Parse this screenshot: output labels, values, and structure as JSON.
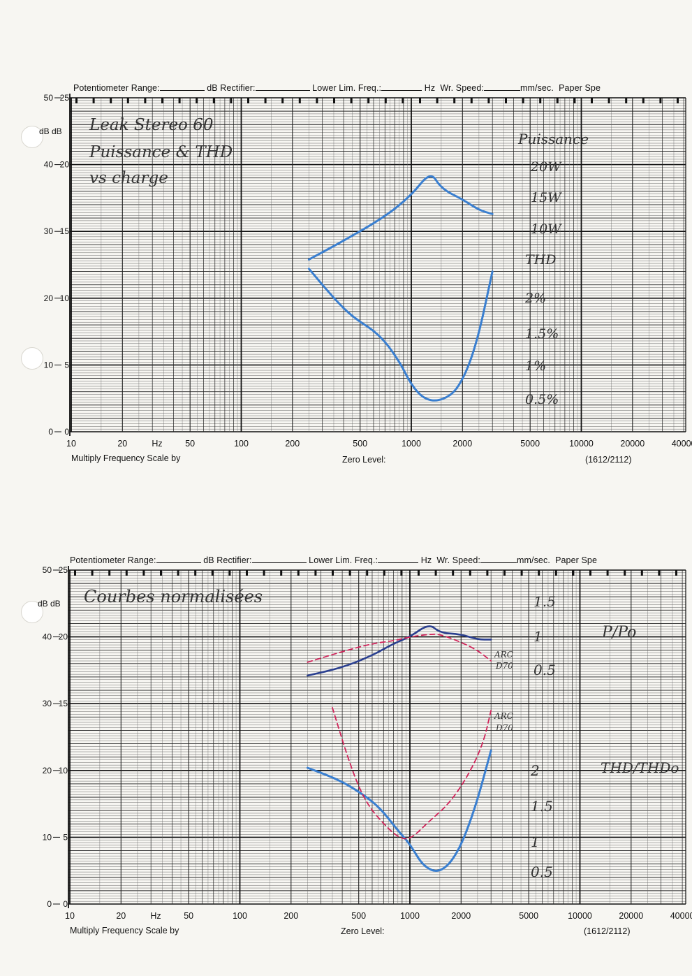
{
  "header": {
    "potentiometer": "Potentiometer Range:",
    "db": "dB",
    "rectifier": "Rectifier:",
    "lower_lim": "Lower Lim. Freq.:",
    "hz": "Hz",
    "wr_speed": "Wr.  Speed:",
    "mm_sec": "mm/sec.",
    "paper": "Paper Spe"
  },
  "footer": {
    "multiply": "Multiply Frequency Scale by",
    "zero_level": "Zero Level:",
    "model": "(1612/2112)"
  },
  "axes": {
    "left_outer": [
      "50",
      "40",
      "30",
      "20",
      "10",
      "0"
    ],
    "left_inner": [
      "25",
      "20",
      "15",
      "10",
      "5",
      "0"
    ],
    "db_label": "dB dB",
    "x_ticks": [
      "10",
      "20",
      "50",
      "100",
      "200",
      "500",
      "1000",
      "2000",
      "5000",
      "10000",
      "20000",
      "40000"
    ],
    "hz_label": "Hz"
  },
  "colors": {
    "blue": "#3a7fd0",
    "navy": "#2a3f8f",
    "red": "#d0245a",
    "grid": "#1a1a1a"
  },
  "chart_data": [
    {
      "type": "line",
      "title": "Leak Stereo 60 Puissance & THD vs charge",
      "x_scale": "log",
      "xlim": [
        10,
        50000
      ],
      "ylim": [
        0,
        25
      ],
      "ylabel_right_top": "Puissance",
      "right_labels_power": [
        "20W",
        "15W",
        "10W"
      ],
      "right_labels_thd": [
        "THD",
        "2%",
        "1.5%",
        "1%",
        "0.5%"
      ],
      "series": [
        {
          "name": "Puissance",
          "x": [
            250,
            400,
            700,
            1000,
            1300,
            1500,
            2000,
            2500,
            3000
          ],
          "y": [
            12.9,
            14.3,
            16.1,
            17.7,
            19.5,
            18.2,
            17.4,
            16.6,
            16.3
          ]
        },
        {
          "name": "THD",
          "x": [
            250,
            350,
            450,
            650,
            850,
            1000,
            1200,
            1500,
            1900,
            2400,
            3000
          ],
          "y": [
            12.2,
            10.0,
            8.6,
            7.3,
            5.3,
            3.5,
            2.4,
            2.3,
            3.2,
            6.3,
            12.0
          ]
        }
      ]
    },
    {
      "type": "line",
      "title": "Courbes normalisées",
      "x_scale": "log",
      "xlim": [
        10,
        50000
      ],
      "ylim": [
        0,
        25
      ],
      "right_labels_power": [
        "1.5",
        "1",
        "0.5"
      ],
      "right_labels_thd": [
        "2",
        "1.5",
        "1",
        "0.5"
      ],
      "annotations": [
        "P/Po",
        "THD/THDo",
        "ARC D70",
        "ARC D70"
      ],
      "series": [
        {
          "name": "P/Po",
          "x": [
            250,
            400,
            600,
            800,
            1000,
            1300,
            1500,
            2000,
            2500,
            3000
          ],
          "y": [
            17.1,
            17.7,
            18.6,
            19.5,
            20.0,
            21.0,
            20.3,
            20.2,
            19.8,
            19.8
          ]
        },
        {
          "name": "P/Po ARC D70",
          "x": [
            250,
            400,
            600,
            800,
            1000,
            1300,
            1500,
            2000,
            2500,
            3000
          ],
          "y": [
            18.1,
            18.9,
            19.5,
            19.7,
            20.0,
            20.2,
            20.2,
            19.6,
            19.0,
            18.2
          ]
        },
        {
          "name": "THD/THDo",
          "x": [
            250,
            350,
            450,
            650,
            850,
            1000,
            1200,
            1500,
            1900,
            2400,
            3000
          ],
          "y": [
            10.2,
            9.5,
            8.8,
            7.4,
            5.5,
            4.5,
            2.8,
            2.3,
            3.7,
            7.0,
            11.5
          ]
        },
        {
          "name": "THD/THDo ARC D70",
          "x": [
            350,
            450,
            550,
            700,
            850,
            1000,
            1300,
            1700,
            2200,
            2700,
            3000
          ],
          "y": [
            14.7,
            10.2,
            7.6,
            6.0,
            5.0,
            4.8,
            6.2,
            7.5,
            9.6,
            12.0,
            14.5
          ]
        }
      ]
    }
  ]
}
